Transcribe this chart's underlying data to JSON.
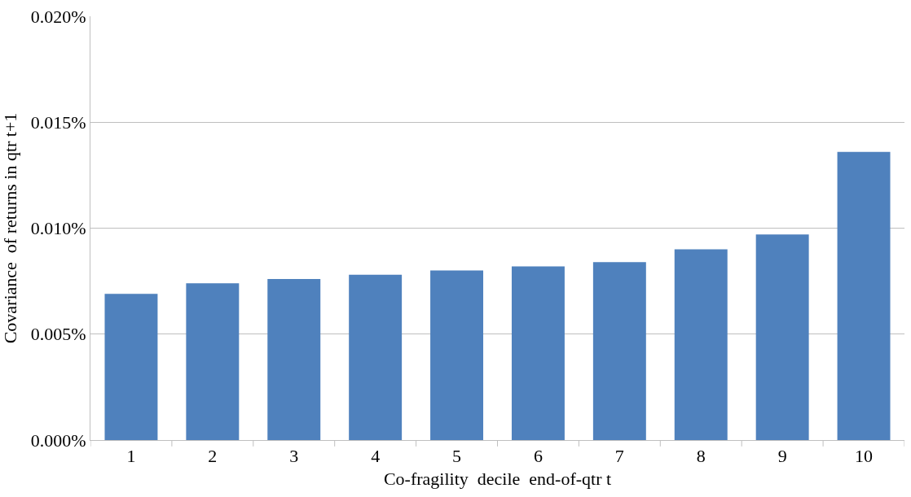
{
  "chart_data": {
    "type": "bar",
    "xlabel": "Co-fragility  decile  end-of-qtr t",
    "ylabel": "Covariance  of returns in qtr t+1",
    "categories": [
      "1",
      "2",
      "3",
      "4",
      "5",
      "6",
      "7",
      "8",
      "9",
      "10"
    ],
    "values": [
      0.0069,
      0.0074,
      0.0076,
      0.0078,
      0.008,
      0.0082,
      0.0084,
      0.009,
      0.0097,
      0.0136
    ],
    "color": "#4f81bd",
    "ylim": [
      0,
      0.02
    ],
    "yticks": [
      {
        "value": 0,
        "label": "0.000%"
      },
      {
        "value": 0.005,
        "label": "0.005%"
      },
      {
        "value": 0.01,
        "label": "0.010%"
      },
      {
        "value": 0.015,
        "label": "0.015%"
      },
      {
        "value": 0.02,
        "label": "0.020%"
      }
    ],
    "grid": "y"
  }
}
